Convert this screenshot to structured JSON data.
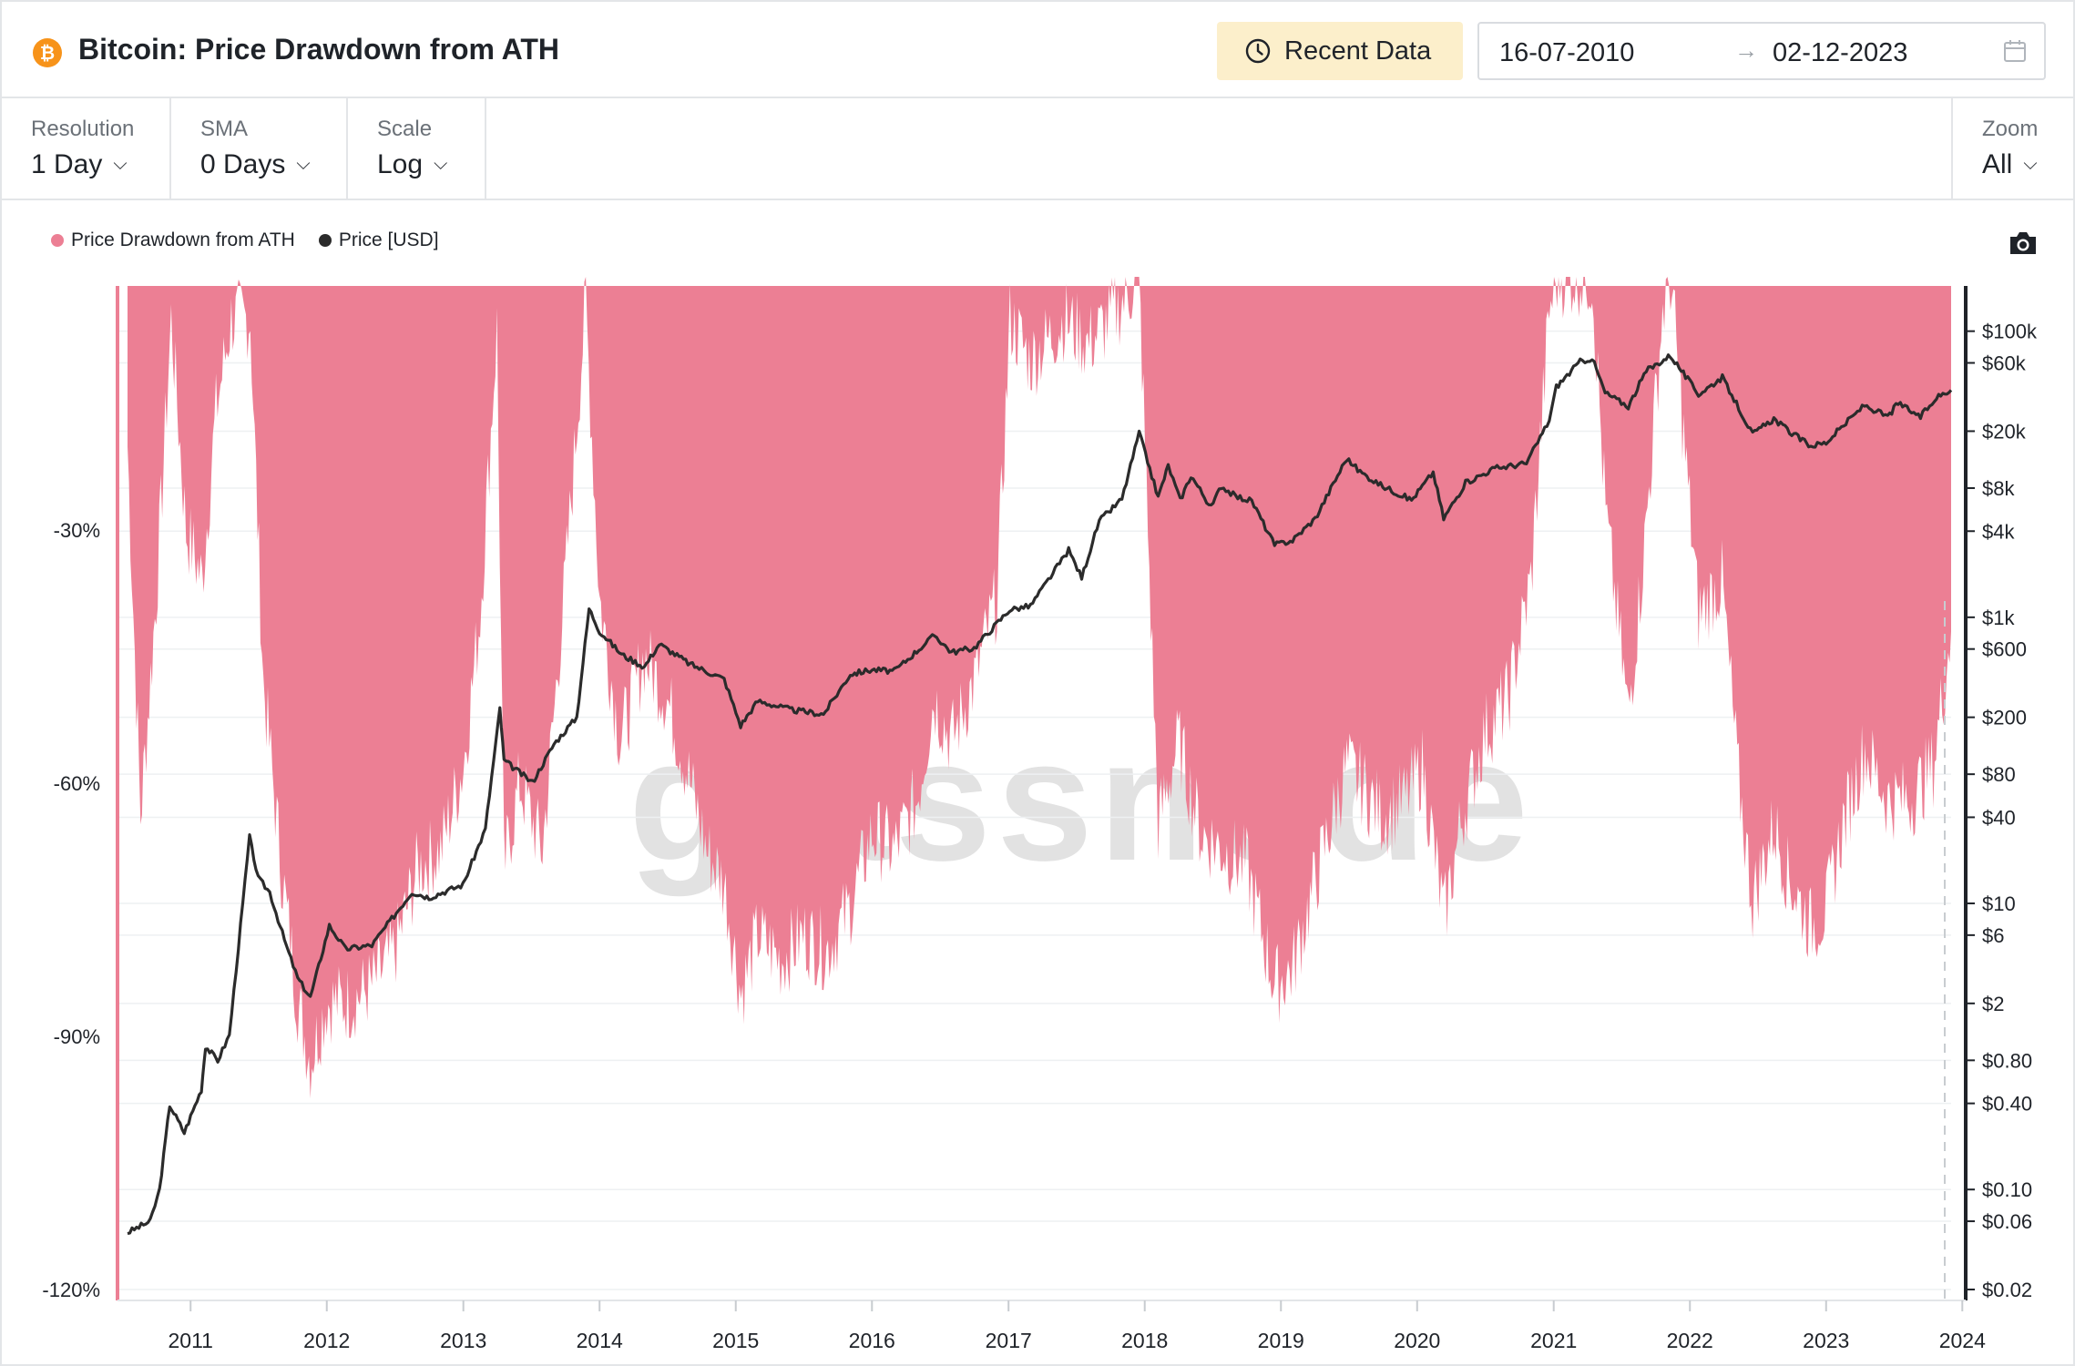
{
  "header": {
    "coin_icon": "bitcoin-icon",
    "coin_symbol": "₿",
    "title": "Bitcoin: Price Drawdown from ATH",
    "recent_button_label": "Recent Data",
    "date_from": "16-07-2010",
    "date_arrow": "→",
    "date_to": "02-12-2023"
  },
  "controls": {
    "resolution": {
      "label": "Resolution",
      "value": "1 Day"
    },
    "sma": {
      "label": "SMA",
      "value": "0 Days"
    },
    "scale": {
      "label": "Scale",
      "value": "Log"
    },
    "zoom": {
      "label": "Zoom",
      "value": "All"
    },
    "chevron": "⌵"
  },
  "legend": [
    {
      "label": "Price Drawdown from ATH",
      "color": "#ec7f94"
    },
    {
      "label": "Price [USD]",
      "color": "#2b2b2b"
    }
  ],
  "watermark": "glassnode",
  "colors": {
    "drawdown": "#ec7f94",
    "price": "#2b2b2b",
    "grid": "#eef0f2",
    "axis": "#1f2329"
  },
  "chart_data": {
    "type": "area",
    "title": "Bitcoin: Price Drawdown from ATH",
    "x_range": [
      "2010-07-16",
      "2023-12-02"
    ],
    "x_ticks": [
      "2011",
      "2012",
      "2013",
      "2014",
      "2015",
      "2016",
      "2017",
      "2018",
      "2019",
      "2020",
      "2021",
      "2022",
      "2023",
      "2024"
    ],
    "y_left": {
      "label": "",
      "ticks": [
        "-30%",
        "-60%",
        "-90%",
        "-120%"
      ],
      "range": [
        -120,
        0
      ]
    },
    "y_right": {
      "label": "",
      "scale": "log",
      "ticks": [
        "$100k",
        "$60k",
        "$20k",
        "$8k",
        "$4k",
        "$1k",
        "$600",
        "$200",
        "$80",
        "$40",
        "$10",
        "$6",
        "$2",
        "$0.80",
        "$0.40",
        "$0.10",
        "$0.06",
        "$0.02"
      ],
      "range": [
        0.02,
        150000
      ]
    },
    "series": [
      {
        "name": "Price Drawdown from ATH",
        "axis": "left",
        "points": [
          [
            "2010-07-16",
            -20
          ],
          [
            "2010-08-20",
            -64
          ],
          [
            "2010-10-01",
            -38
          ],
          [
            "2010-11-10",
            -5
          ],
          [
            "2010-12-20",
            -30
          ],
          [
            "2011-02-01",
            -36
          ],
          [
            "2011-03-10",
            -16
          ],
          [
            "2011-04-20",
            -5
          ],
          [
            "2011-06-10",
            -5
          ],
          [
            "2011-07-15",
            -48
          ],
          [
            "2011-09-01",
            -70
          ],
          [
            "2011-10-15",
            -86
          ],
          [
            "2011-11-18",
            -93
          ],
          [
            "2012-01-01",
            -86
          ],
          [
            "2012-03-01",
            -86
          ],
          [
            "2012-05-01",
            -84
          ],
          [
            "2012-07-01",
            -80
          ],
          [
            "2012-09-01",
            -70
          ],
          [
            "2012-11-01",
            -68
          ],
          [
            "2013-01-01",
            -58
          ],
          [
            "2013-02-15",
            -40
          ],
          [
            "2013-04-01",
            -6
          ],
          [
            "2013-04-20",
            -70
          ],
          [
            "2013-06-01",
            -60
          ],
          [
            "2013-08-01",
            -68
          ],
          [
            "2013-10-01",
            -36
          ],
          [
            "2013-11-25",
            -3
          ],
          [
            "2014-01-01",
            -38
          ],
          [
            "2014-02-25",
            -55
          ],
          [
            "2014-05-01",
            -45
          ],
          [
            "2014-07-01",
            -50
          ],
          [
            "2014-09-01",
            -60
          ],
          [
            "2014-10-15",
            -68
          ],
          [
            "2014-12-01",
            -72
          ],
          [
            "2015-01-15",
            -85
          ],
          [
            "2015-03-01",
            -78
          ],
          [
            "2015-05-01",
            -81
          ],
          [
            "2015-07-01",
            -78
          ],
          [
            "2015-09-01",
            -80
          ],
          [
            "2015-11-01",
            -75
          ],
          [
            "2016-01-01",
            -66
          ],
          [
            "2016-03-01",
            -68
          ],
          [
            "2016-05-01",
            -62
          ],
          [
            "2016-06-15",
            -50
          ],
          [
            "2016-08-01",
            -55
          ],
          [
            "2016-10-01",
            -48
          ],
          [
            "2016-12-01",
            -38
          ],
          [
            "2017-01-05",
            -5
          ],
          [
            "2017-03-01",
            -10
          ],
          [
            "2017-06-01",
            -5
          ],
          [
            "2017-08-01",
            -8
          ],
          [
            "2017-10-01",
            -5
          ],
          [
            "2017-12-17",
            0
          ],
          [
            "2018-02-06",
            -65
          ],
          [
            "2018-04-01",
            -55
          ],
          [
            "2018-06-01",
            -66
          ],
          [
            "2018-08-01",
            -68
          ],
          [
            "2018-10-01",
            -70
          ],
          [
            "2018-12-15",
            -84
          ],
          [
            "2019-02-01",
            -82
          ],
          [
            "2019-04-01",
            -72
          ],
          [
            "2019-06-26",
            -58
          ],
          [
            "2019-08-01",
            -60
          ],
          [
            "2019-10-01",
            -64
          ],
          [
            "2019-12-01",
            -62
          ],
          [
            "2020-01-15",
            -58
          ],
          [
            "2020-03-13",
            -76
          ],
          [
            "2020-05-01",
            -64
          ],
          [
            "2020-07-01",
            -54
          ],
          [
            "2020-09-01",
            -50
          ],
          [
            "2020-11-01",
            -36
          ],
          [
            "2020-12-20",
            -4
          ],
          [
            "2021-01-10",
            0
          ],
          [
            "2021-04-14",
            0
          ],
          [
            "2021-05-20",
            -28
          ],
          [
            "2021-07-20",
            -52
          ],
          [
            "2021-09-01",
            -32
          ],
          [
            "2021-10-20",
            -4
          ],
          [
            "2021-11-10",
            0
          ],
          [
            "2022-01-24",
            -40
          ],
          [
            "2022-03-28",
            -36
          ],
          [
            "2022-05-12",
            -60
          ],
          [
            "2022-06-18",
            -74
          ],
          [
            "2022-08-15",
            -65
          ],
          [
            "2022-09-20",
            -71
          ],
          [
            "2022-11-21",
            -77
          ],
          [
            "2023-01-01",
            -75
          ],
          [
            "2023-02-15",
            -65
          ],
          [
            "2023-04-15",
            -56
          ],
          [
            "2023-06-15",
            -62
          ],
          [
            "2023-08-15",
            -62
          ],
          [
            "2023-10-15",
            -58
          ],
          [
            "2023-12-02",
            -42
          ]
        ]
      },
      {
        "name": "Price [USD]",
        "axis": "right",
        "points": [
          [
            "2010-07-16",
            0.05
          ],
          [
            "2010-09-15",
            0.06
          ],
          [
            "2010-10-10",
            0.1
          ],
          [
            "2010-11-06",
            0.39
          ],
          [
            "2010-12-15",
            0.25
          ],
          [
            "2011-01-30",
            0.5
          ],
          [
            "2011-02-10",
            1.0
          ],
          [
            "2011-03-15",
            0.8
          ],
          [
            "2011-04-15",
            1.2
          ],
          [
            "2011-05-15",
            7
          ],
          [
            "2011-06-08",
            29
          ],
          [
            "2011-07-01",
            15
          ],
          [
            "2011-08-01",
            12
          ],
          [
            "2011-09-15",
            5
          ],
          [
            "2011-10-15",
            3
          ],
          [
            "2011-11-18",
            2.2
          ],
          [
            "2012-01-08",
            7
          ],
          [
            "2012-02-20",
            4.8
          ],
          [
            "2012-05-01",
            5.1
          ],
          [
            "2012-08-16",
            12
          ],
          [
            "2012-10-01",
            11
          ],
          [
            "2012-12-31",
            13.5
          ],
          [
            "2013-03-01",
            33
          ],
          [
            "2013-04-09",
            230
          ],
          [
            "2013-04-20",
            100
          ],
          [
            "2013-07-05",
            70
          ],
          [
            "2013-09-01",
            130
          ],
          [
            "2013-11-01",
            200
          ],
          [
            "2013-12-04",
            1150
          ],
          [
            "2014-01-01",
            800
          ],
          [
            "2014-03-01",
            550
          ],
          [
            "2014-05-01",
            450
          ],
          [
            "2014-06-10",
            650
          ],
          [
            "2014-09-01",
            470
          ],
          [
            "2014-12-01",
            370
          ],
          [
            "2015-01-14",
            175
          ],
          [
            "2015-03-01",
            260
          ],
          [
            "2015-06-01",
            225
          ],
          [
            "2015-08-24",
            210
          ],
          [
            "2015-11-04",
            400
          ],
          [
            "2016-01-01",
            430
          ],
          [
            "2016-03-01",
            420
          ],
          [
            "2016-06-17",
            750
          ],
          [
            "2016-08-01",
            570
          ],
          [
            "2016-10-01",
            610
          ],
          [
            "2017-01-04",
            1130
          ],
          [
            "2017-03-01",
            1200
          ],
          [
            "2017-06-11",
            2950
          ],
          [
            "2017-07-16",
            1900
          ],
          [
            "2017-09-01",
            4700
          ],
          [
            "2017-11-01",
            6700
          ],
          [
            "2017-12-17",
            19500
          ],
          [
            "2018-02-06",
            6900
          ],
          [
            "2018-03-05",
            11500
          ],
          [
            "2018-04-06",
            6600
          ],
          [
            "2018-05-05",
            9800
          ],
          [
            "2018-06-28",
            5850
          ],
          [
            "2018-07-25",
            8300
          ],
          [
            "2018-09-01",
            7000
          ],
          [
            "2018-10-15",
            6500
          ],
          [
            "2018-12-15",
            3200
          ],
          [
            "2019-02-01",
            3450
          ],
          [
            "2019-04-03",
            4900
          ],
          [
            "2019-06-26",
            12900
          ],
          [
            "2019-08-01",
            10400
          ],
          [
            "2019-09-25",
            8400
          ],
          [
            "2019-12-17",
            6600
          ],
          [
            "2020-02-13",
            10300
          ],
          [
            "2020-03-12",
            4900
          ],
          [
            "2020-05-10",
            8700
          ],
          [
            "2020-07-27",
            11000
          ],
          [
            "2020-10-20",
            11900
          ],
          [
            "2020-12-20",
            23800
          ],
          [
            "2021-01-08",
            40800
          ],
          [
            "2021-03-13",
            61200
          ],
          [
            "2021-04-14",
            64800
          ],
          [
            "2021-05-19",
            37000
          ],
          [
            "2021-07-20",
            29800
          ],
          [
            "2021-09-06",
            52700
          ],
          [
            "2021-11-10",
            67600
          ],
          [
            "2022-01-24",
            36200
          ],
          [
            "2022-03-29",
            47400
          ],
          [
            "2022-05-12",
            28900
          ],
          [
            "2022-06-18",
            19000
          ],
          [
            "2022-08-14",
            24400
          ],
          [
            "2022-10-01",
            19300
          ],
          [
            "2022-11-21",
            15800
          ],
          [
            "2023-01-01",
            16600
          ],
          [
            "2023-03-01",
            23600
          ],
          [
            "2023-04-14",
            30400
          ],
          [
            "2023-06-15",
            25100
          ],
          [
            "2023-07-13",
            31400
          ],
          [
            "2023-09-11",
            25100
          ],
          [
            "2023-10-24",
            34500
          ],
          [
            "2023-12-02",
            38700
          ]
        ]
      }
    ],
    "grid": true,
    "legend_position": "top-left"
  }
}
